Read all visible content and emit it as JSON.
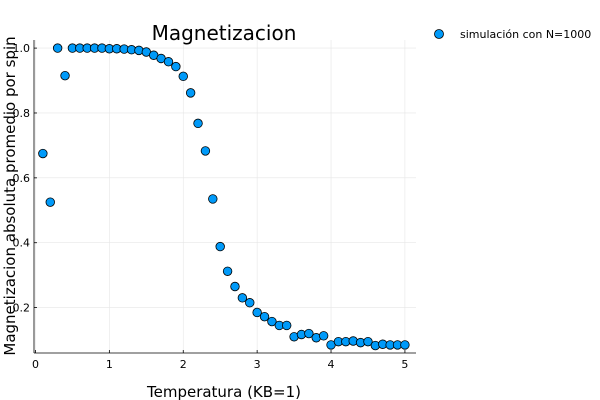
{
  "chart_data": {
    "type": "scatter",
    "title": "Magnetizacion",
    "xlabel": "Temperatura (KB=1)",
    "ylabel": "Magnetizacion absoluta promedio por spin",
    "xlim": [
      -0.02,
      5.15
    ],
    "ylim": [
      0.06,
      1.025
    ],
    "xticks": [
      0,
      1,
      2,
      3,
      4,
      5
    ],
    "xtick_labels": [
      "0",
      "1",
      "2",
      "3",
      "4",
      "5"
    ],
    "yticks": [
      0.2,
      0.4,
      0.6,
      0.8,
      1.0
    ],
    "ytick_labels": [
      "0.2",
      "0.4",
      "0.6",
      "0.8",
      "1.0"
    ],
    "grid": true,
    "legend_position": "top-right",
    "marker_color": "#009af9",
    "series": [
      {
        "name": "simulación con N=1000",
        "x": [
          0.1,
          0.2,
          0.3,
          0.4,
          0.5,
          0.6,
          0.7,
          0.8,
          0.9,
          1.0,
          1.1,
          1.2,
          1.3,
          1.4,
          1.5,
          1.6,
          1.7,
          1.8,
          1.9,
          2.0,
          2.1,
          2.2,
          2.3,
          2.4,
          2.5,
          2.6,
          2.7,
          2.8,
          2.9,
          3.0,
          3.1,
          3.2,
          3.3,
          3.4,
          3.5,
          3.6,
          3.7,
          3.8,
          3.9,
          4.0,
          4.1,
          4.2,
          4.3,
          4.4,
          4.5,
          4.6,
          4.7,
          4.8,
          4.9,
          5.0
        ],
        "y": [
          0.675,
          0.525,
          1.0,
          0.915,
          1.0,
          1.0,
          1.0,
          1.0,
          1.0,
          0.998,
          0.998,
          0.997,
          0.995,
          0.993,
          0.988,
          0.978,
          0.968,
          0.958,
          0.943,
          0.913,
          0.862,
          0.768,
          0.683,
          0.535,
          0.388,
          0.312,
          0.265,
          0.23,
          0.215,
          0.185,
          0.172,
          0.157,
          0.145,
          0.145,
          0.11,
          0.117,
          0.12,
          0.107,
          0.113,
          0.085,
          0.095,
          0.095,
          0.097,
          0.092,
          0.095,
          0.083,
          0.087,
          0.085,
          0.085,
          0.085
        ]
      }
    ]
  }
}
